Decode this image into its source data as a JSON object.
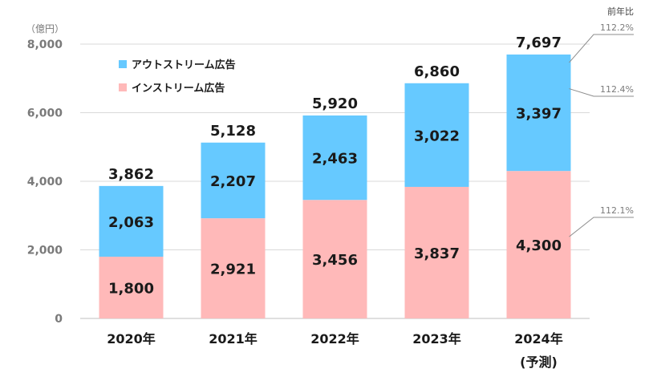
{
  "chart_data": {
    "type": "bar",
    "stacked": true,
    "unit_label": "（億円）",
    "categories": [
      "2020年",
      "2021年",
      "2022年",
      "2023年",
      "2024年"
    ],
    "category_sublabels": [
      "",
      "",
      "",
      "",
      "(予測)"
    ],
    "series": [
      {
        "name": "インストリーム広告",
        "color": "#ffb9b9",
        "values": [
          1800,
          2921,
          3456,
          3837,
          4300
        ],
        "value_labels": [
          "1,800",
          "2,921",
          "3,456",
          "3,837",
          "4,300"
        ]
      },
      {
        "name": "アウトストリーム広告",
        "color": "#66c9ff",
        "values": [
          2063,
          2207,
          2463,
          3022,
          3397
        ],
        "value_labels": [
          "2,063",
          "2,207",
          "2,463",
          "3,022",
          "3,397"
        ]
      }
    ],
    "totals": [
      3862,
      5128,
      5920,
      6860,
      7697
    ],
    "total_labels": [
      "3,862",
      "5,128",
      "5,920",
      "6,860",
      "7,697"
    ],
    "ylim": [
      0,
      8000
    ],
    "yticks": [
      0,
      2000,
      4000,
      6000,
      8000
    ],
    "ytick_labels": [
      "0",
      "2,000",
      "4,000",
      "6,000",
      "8,000"
    ],
    "grid": true,
    "legend_placement": "top-left",
    "legend_order": [
      "アウトストリーム広告",
      "インストリーム広告"
    ],
    "yoy": {
      "header": "前年比",
      "total": "112.2%",
      "outstream": "112.4%",
      "instream": "112.1%"
    }
  }
}
